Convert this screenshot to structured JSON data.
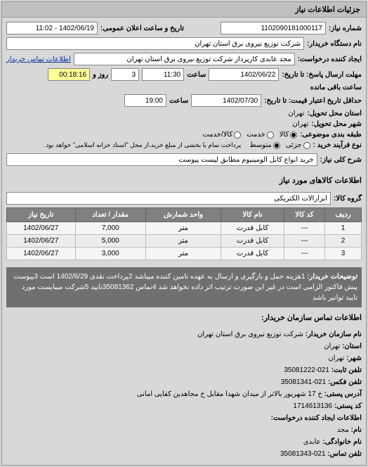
{
  "panel": {
    "title": "جزئیات اطلاعات نیاز"
  },
  "header": {
    "req_num_label": "شماره نیاز:",
    "req_num": "1102090181000117",
    "announce_label": "تاریخ و ساعت اعلان عمومی:",
    "announce_value": "1402/06/19 - 11:02",
    "buyer_org_label": "نام دستگاه خریدار:",
    "buyer_org": "شرکت توزیع نیروی برق استان تهران",
    "requester_label": "ایجاد کننده درخواست:",
    "requester": "مجد عابدی کارپرداز شرکت توزیع نیروی برق استان تهران",
    "contact_link": "اطلاعات تماس خریدار",
    "deadline_label": "مهلت ارسال پاسخ: تا تاریخ:",
    "deadline_date": "1402/06/22",
    "time_label": "ساعت",
    "deadline_time": "11:30",
    "days_remain": "3",
    "days_label": "روز و",
    "time_remain": "00:18:16",
    "time_remain_label": "ساعت باقی مانده",
    "valid_label": "حداقل تاریخ اعتبار قیمت: تا تاریخ:",
    "valid_date": "1402/07/30",
    "valid_time": "19:00",
    "province_label": "استان محل تحویل:",
    "province": "تهران",
    "city_label": "شهر محل تحویل:",
    "city": "تهران",
    "pkg_label": "طبقه بندی موضوعی:",
    "pkg_options": {
      "kala": "کالا",
      "khadamat": "خدمت",
      "kala_khadamat": "کالا/خدمت"
    },
    "process_label": "نوع فرآیند خرید :",
    "process_options": {
      "small": "جزئی",
      "medium": "متوسط"
    },
    "process_note": "پرداخت تمام یا بخشی از مبلغ خرید،از محل \"اسناد خزانه اسلامی\" خواهد بود.",
    "need_title_label": "شرح کلی نیاز:",
    "need_title": "خرید انواع کابل آلومینیوم مطابق لیست پیوست"
  },
  "goods": {
    "section_title": "اطلاعات کالاهای مورد نیاز",
    "group_label": "گروه کالا:",
    "group_value": "ابزارآلات الکتریکی",
    "columns": [
      "ردیف",
      "کد کالا",
      "نام کالا",
      "واحد شمارش",
      "مقدار / تعداد",
      "تاریخ نیاز"
    ],
    "rows": [
      [
        "1",
        "---",
        "کابل قدرت",
        "متر",
        "7,000",
        "1402/06/27"
      ],
      [
        "2",
        "---",
        "کابل قدرت",
        "متر",
        "5,000",
        "1402/06/27"
      ],
      [
        "3",
        "---",
        "کابل قدرت",
        "متر",
        "3,000",
        "1402/06/27"
      ]
    ]
  },
  "desc": {
    "label": "توضیحات خریدار:",
    "text": "1هزینه حمل و بارگیری و ارسال به عهده تامین کننده میباشد 2پرداخت نقدی 1402/6/29 است 3پیوست پیش فاکتور الزامی است در غیر این صورت ترتیب اثر داده نخواهد شد 4تماس 35081362تایید 5شرکت میبایست مورد تایید توانیر باشد"
  },
  "contact": {
    "section_title": "اطلاعات تماس سازمان خریدار:",
    "org_label": "نام سازمان خریدار:",
    "org": "شرکت توزیع نیروی برق استان تهران",
    "prov_label": "استان:",
    "prov": "تهران",
    "city_label": "شهر:",
    "city": "تهران",
    "tel_label": "تلفن ثابت:",
    "tel": "021-35081222",
    "fax_label": "تلفن فکس:",
    "fax": "021-35081341",
    "addr_label": "آدرس پستی:",
    "addr": "خ 17 شهریور بالاتر از میدان شهدا مقابل خ مجاهدین کفایی امانی",
    "post_label": "کد پستی:",
    "post": "1714613136",
    "creator_section": "اطلاعات ایجاد کننده درخواست:",
    "name_label": "نام:",
    "name": "مجد",
    "family_label": "نام خانوادگی:",
    "family": "عابدی",
    "phone_label": "تلفن تماس:",
    "phone": "021-35081343"
  }
}
